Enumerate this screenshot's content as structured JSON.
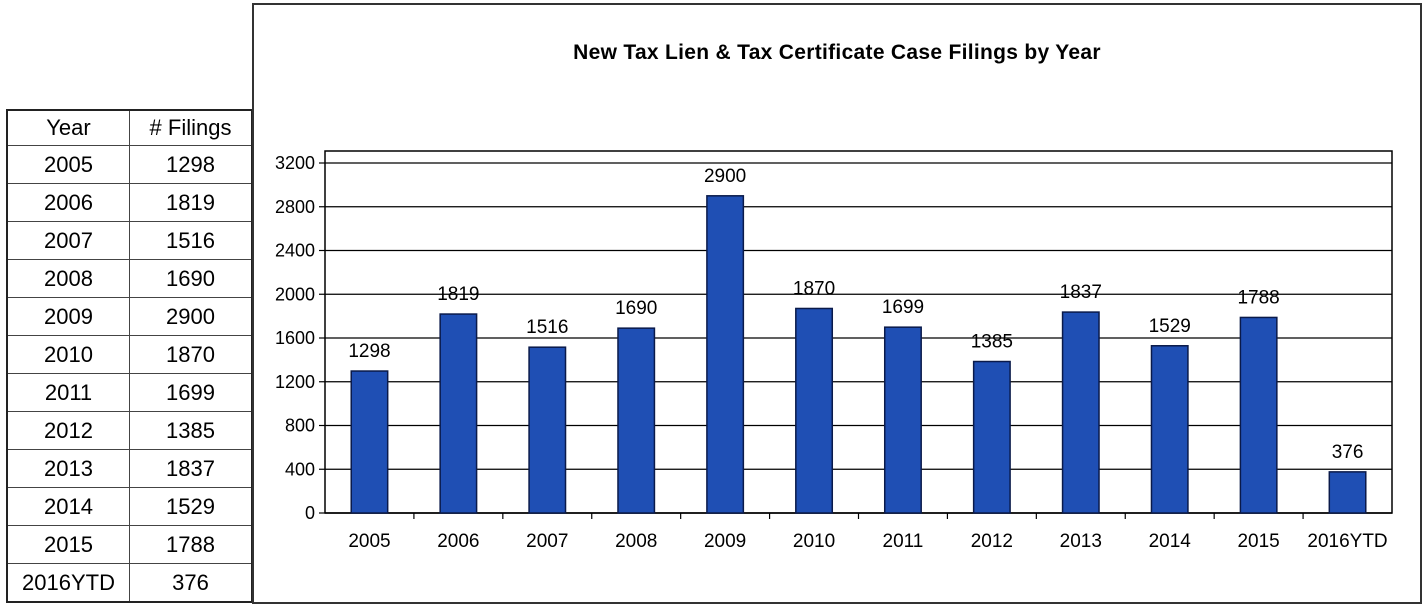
{
  "table": {
    "headers": [
      "Year",
      "# Filings"
    ],
    "rows": [
      [
        "2005",
        "1298"
      ],
      [
        "2006",
        "1819"
      ],
      [
        "2007",
        "1516"
      ],
      [
        "2008",
        "1690"
      ],
      [
        "2009",
        "2900"
      ],
      [
        "2010",
        "1870"
      ],
      [
        "2011",
        "1699"
      ],
      [
        "2012",
        "1385"
      ],
      [
        "2013",
        "1837"
      ],
      [
        "2014",
        "1529"
      ],
      [
        "2015",
        "1788"
      ],
      [
        "2016YTD",
        "376"
      ]
    ]
  },
  "chart_data": {
    "type": "bar",
    "title": "New Tax Lien & Tax Certificate Case Filings by Year",
    "xlabel": "",
    "ylabel": "",
    "categories": [
      "2005",
      "2006",
      "2007",
      "2008",
      "2009",
      "2010",
      "2011",
      "2012",
      "2013",
      "2014",
      "2015",
      "2016YTD"
    ],
    "values": [
      1298,
      1819,
      1516,
      1690,
      2900,
      1870,
      1699,
      1385,
      1837,
      1529,
      1788,
      376
    ],
    "ylim": [
      0,
      3200
    ],
    "yticks": [
      0,
      400,
      800,
      1200,
      1600,
      2000,
      2400,
      2800,
      3200
    ],
    "grid": true,
    "bar_color": "#1f4fb4",
    "bar_edge_color": "#0a1a4a"
  }
}
